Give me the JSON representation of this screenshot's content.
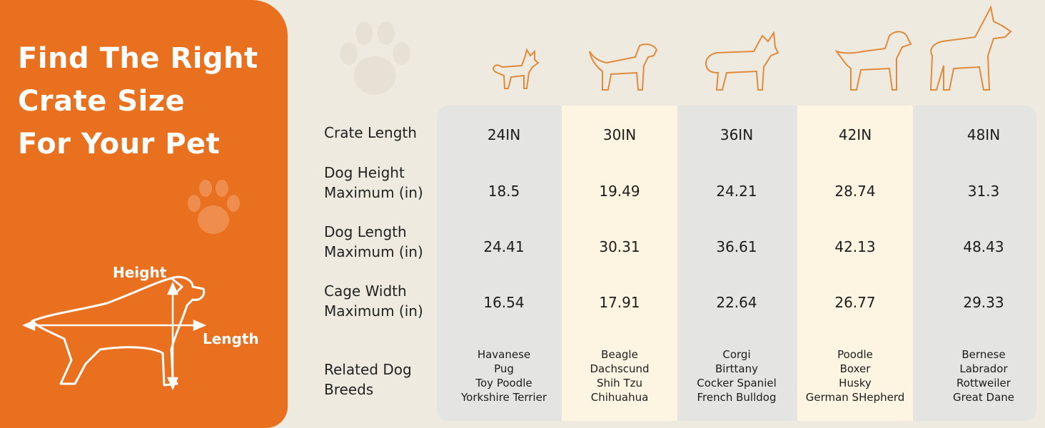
{
  "title": {
    "lines": [
      "Find The Right",
      "Crate Size",
      "For Your Pet"
    ]
  },
  "diagram": {
    "height_label": "Height",
    "length_label": "Length"
  },
  "colors": {
    "brand_orange": "#E8701F",
    "background": "#EEEAE0",
    "column_gray": "#E4E4E2",
    "column_cream": "#FDF5E2",
    "dog_outline": "#E08A3C"
  },
  "table": {
    "row_labels": [
      [
        "Crate Length"
      ],
      [
        "Dog Height",
        "Maximum (in)"
      ],
      [
        "Dog Length",
        "Maximum (in)"
      ],
      [
        "Cage Width",
        "Maximum (in)"
      ],
      [
        "Related Dog",
        "Breeds"
      ]
    ],
    "columns": [
      {
        "crate_length": "24IN",
        "dog_height": "18.5",
        "dog_length": "24.41",
        "cage_width": "16.54",
        "breeds": [
          "Havanese",
          "Pug",
          "Toy Poodle",
          "Yorkshire Terrier"
        ]
      },
      {
        "crate_length": "30IN",
        "dog_height": "19.49",
        "dog_length": "30.31",
        "cage_width": "17.91",
        "breeds": [
          "Beagle",
          "Dachscund",
          "Shih Tzu",
          "Chihuahua"
        ]
      },
      {
        "crate_length": "36IN",
        "dog_height": "24.21",
        "dog_length": "36.61",
        "cage_width": "22.64",
        "breeds": [
          "Corgi",
          "Birttany",
          "Cocker Spaniel",
          "French Bulldog"
        ]
      },
      {
        "crate_length": "42IN",
        "dog_height": "28.74",
        "dog_length": "42.13",
        "cage_width": "26.77",
        "breeds": [
          "Poodle",
          "Boxer",
          "Husky",
          "German SHepherd"
        ]
      },
      {
        "crate_length": "48IN",
        "dog_height": "31.3",
        "dog_length": "48.43",
        "cage_width": "29.33",
        "breeds": [
          "Bernese",
          "Labrador",
          "Rottweiler",
          "Great Dane"
        ]
      }
    ]
  }
}
